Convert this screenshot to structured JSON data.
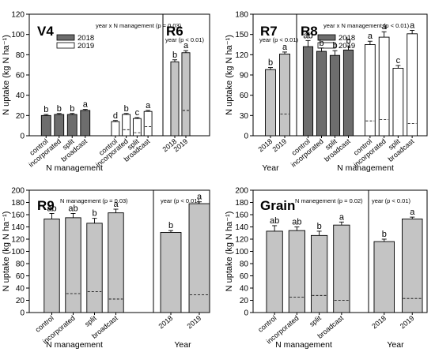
{
  "colors": {
    "y2018": "#6d6d6d",
    "y2019": "#ffffff",
    "single": "#c4c4c4",
    "outline": "#000000"
  },
  "panel_titles": {
    "tl": "V4",
    "tr": "R8",
    "bl": "R9",
    "br": "Grain"
  },
  "chart_data": [
    {
      "type": "bar",
      "panel": "tl",
      "ylabel": "N uptake (kg N ha⁻¹)",
      "yticks": [
        0,
        20,
        40,
        60,
        80,
        100,
        120
      ],
      "ylim": [
        0,
        120
      ],
      "grid": false,
      "sections": [
        {
          "stage": "V4",
          "xlabel": "N management",
          "annotation": "year x N management (p = 0.03)",
          "legend": [
            {
              "name": "2018",
              "color": "#6d6d6d"
            },
            {
              "name": "2019",
              "color": "#ffffff"
            }
          ],
          "legend_position": "top",
          "groups": [
            {
              "name": "2018",
              "color": "#6d6d6d",
              "categories": [
                "control",
                "incorporated",
                "split",
                "broadcast"
              ],
              "values": [
                20,
                21,
                21,
                25
              ],
              "errors": [
                1,
                1,
                1,
                1
              ],
              "letters": [
                "b",
                "b",
                "b",
                "a"
              ],
              "dashes": [
                null,
                null,
                null,
                null
              ]
            },
            {
              "name": "2019",
              "color": "#ffffff",
              "categories": [
                "control",
                "incorporated",
                "split",
                "broadcast"
              ],
              "values": [
                14,
                21,
                17,
                24
              ],
              "errors": [
                1,
                1,
                1,
                1
              ],
              "letters": [
                "d",
                "b",
                "c",
                "a"
              ],
              "dashes": [
                null,
                6,
                3,
                9
              ]
            }
          ]
        },
        {
          "stage": "R6",
          "xlabel": "",
          "annotation": "year (p < 0.01)",
          "groups": [
            {
              "name": "year",
              "color": "#c4c4c4",
              "categories": [
                "2018",
                "2019"
              ],
              "values": [
                73,
                82
              ],
              "errors": [
                2,
                2
              ],
              "letters": [
                "b",
                "a"
              ],
              "dashes": [
                null,
                25
              ]
            }
          ]
        }
      ]
    },
    {
      "type": "bar",
      "panel": "tr",
      "ylabel": "N uptake (kg N ha⁻¹)",
      "yticks": [
        0,
        30,
        60,
        90,
        120,
        150,
        180
      ],
      "ylim": [
        0,
        180
      ],
      "grid": false,
      "sections": [
        {
          "stage": "R7",
          "xlabel": "Year",
          "annotation": "year (p < 0.01)",
          "groups": [
            {
              "name": "year",
              "color": "#c4c4c4",
              "categories": [
                "2018",
                "2019"
              ],
              "values": [
                98,
                121
              ],
              "errors": [
                3,
                3
              ],
              "letters": [
                "b",
                "a"
              ],
              "dashes": [
                null,
                32
              ]
            }
          ]
        },
        {
          "stage": "R8",
          "xlabel": "N management",
          "annotation": "year x N management (p < 0.01)",
          "legend": [
            {
              "name": "2018",
              "color": "#6d6d6d"
            },
            {
              "name": "2019",
              "color": "#ffffff"
            }
          ],
          "legend_position": "top",
          "groups": [
            {
              "name": "2018",
              "color": "#6d6d6d",
              "categories": [
                "control",
                "incorporated",
                "split",
                "broadcast"
              ],
              "values": [
                132,
                125,
                119,
                127
              ],
              "errors": [
                9,
                5,
                7,
                6
              ],
              "letters": [
                "ab",
                "b",
                "b",
                "b"
              ],
              "dashes": [
                null,
                null,
                null,
                null
              ]
            },
            {
              "name": "2019",
              "color": "#ffffff",
              "categories": [
                "control",
                "incorporated",
                "split",
                "broadcast"
              ],
              "values": [
                135,
                146,
                100,
                151
              ],
              "errors": [
                5,
                8,
                4,
                5
              ],
              "letters": [
                "a",
                "a",
                "c",
                "a"
              ],
              "dashes": [
                22,
                24,
                null,
                18
              ]
            }
          ]
        }
      ]
    },
    {
      "type": "bar",
      "panel": "bl",
      "ylabel": "N uptake (kg N ha⁻¹)",
      "yticks": [
        0,
        20,
        40,
        60,
        80,
        100,
        120,
        140,
        160,
        180,
        200
      ],
      "ylim": [
        0,
        200
      ],
      "grid": false,
      "sections": [
        {
          "stage": "R9",
          "xlabel": "N management",
          "annotation": "N management (p = 0.03)",
          "groups": [
            {
              "name": "N management",
              "color": "#c4c4c4",
              "categories": [
                "control",
                "incorporated",
                "split",
                "broadcast"
              ],
              "values": [
                153,
                155,
                146,
                163
              ],
              "errors": [
                9,
                7,
                8,
                6
              ],
              "letters": [
                "ab",
                "ab",
                "b",
                "a"
              ],
              "dashes": [
                null,
                31,
                34,
                22
              ]
            }
          ]
        },
        {
          "stage": "",
          "xlabel": "Year",
          "annotation": "year (p < 0.01)",
          "groups": [
            {
              "name": "year",
              "color": "#c4c4c4",
              "categories": [
                "2018",
                "2019"
              ],
              "values": [
                131,
                178
              ],
              "errors": [
                3,
                3
              ],
              "letters": [
                "b",
                "a"
              ],
              "dashes": [
                null,
                29
              ]
            }
          ]
        }
      ]
    },
    {
      "type": "bar",
      "panel": "br",
      "ylabel": "N uptake (kg N ha⁻¹)",
      "yticks": [
        0,
        20,
        40,
        60,
        80,
        100,
        120,
        140,
        160,
        180,
        200
      ],
      "ylim": [
        0,
        200
      ],
      "grid": false,
      "sections": [
        {
          "stage": "Grain",
          "xlabel": "N management",
          "annotation": "N manegement (p = 0.02)",
          "groups": [
            {
              "name": "N management",
              "color": "#c4c4c4",
              "categories": [
                "control",
                "incorporated",
                "split",
                "broadcast"
              ],
              "values": [
                133,
                134,
                126,
                143
              ],
              "errors": [
                9,
                6,
                7,
                5
              ],
              "letters": [
                "ab",
                "ab",
                "b",
                "a"
              ],
              "dashes": [
                null,
                25,
                28,
                20
              ]
            }
          ]
        },
        {
          "stage": "",
          "xlabel": "Year",
          "annotation": "year (p < 0.01)",
          "groups": [
            {
              "name": "year",
              "color": "#c4c4c4",
              "categories": [
                "2018",
                "2019"
              ],
              "values": [
                116,
                153
              ],
              "errors": [
                4,
                3
              ],
              "letters": [
                "b",
                "a"
              ],
              "dashes": [
                null,
                23
              ]
            }
          ]
        }
      ]
    }
  ]
}
